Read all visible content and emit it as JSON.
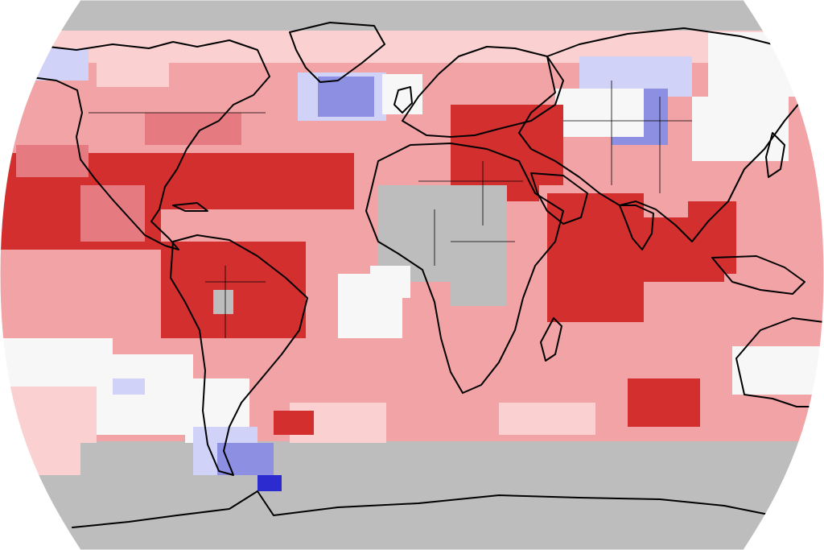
{
  "map": {
    "projection": "robinson",
    "variable": "temperature-anomaly",
    "palette": {
      "no_data": "#bdbdbd",
      "near_zero": "#f7f7f7",
      "warm_1": "#fbd0d0",
      "warm_2": "#f2a3a6",
      "warm_3": "#e57b80",
      "warm_4": "#d42f2f",
      "cool_1": "#d0d2f7",
      "cool_2": "#8d8fe3",
      "cool_3": "#2b2bd0",
      "coastline": "#000000"
    }
  }
}
